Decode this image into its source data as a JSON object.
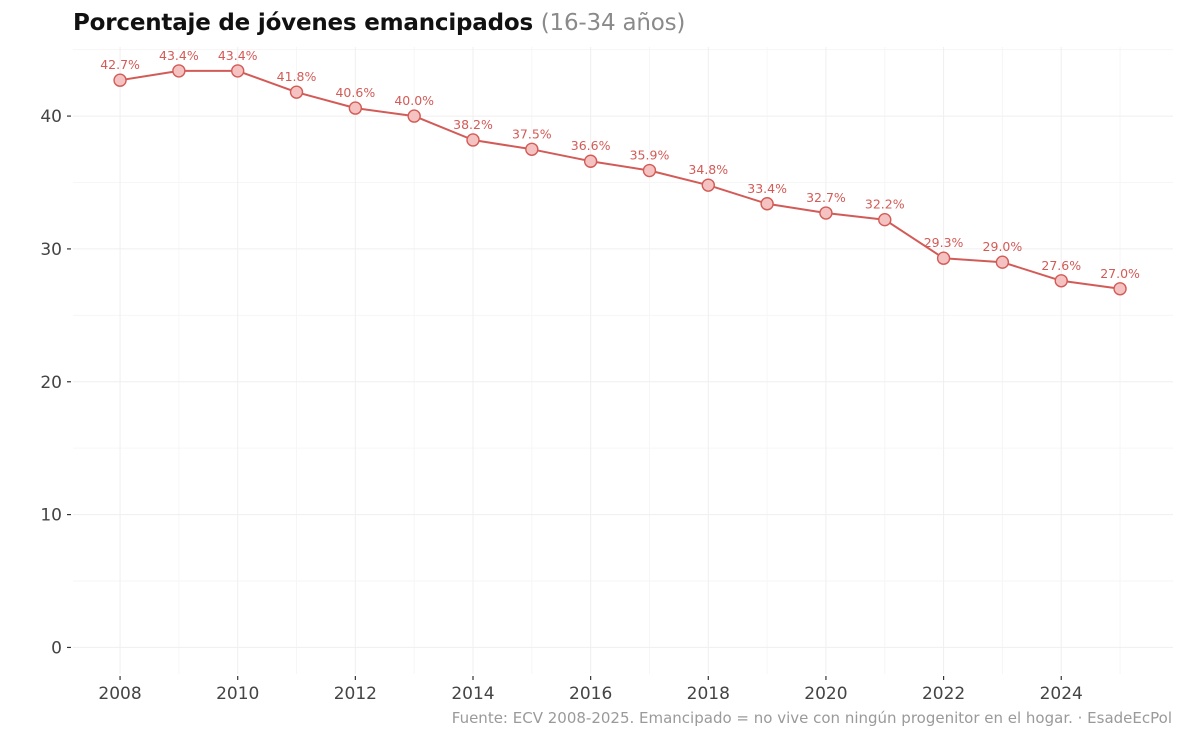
{
  "title": "Porcentaje de jóvenes emancipados",
  "subtitle": "(16-34 años)",
  "caption": "Fuente: ECV 2008-2025. Emancipado = no vive con ningún progenitor en el hogar. · EsadeEcPol",
  "colors": {
    "line": "#d35b57",
    "point_fill": "#f4c2c0",
    "label": "#d35b57",
    "grid": "#efefef",
    "axis_text": "#444444"
  },
  "chart_data": {
    "type": "line",
    "title": "Porcentaje de jóvenes emancipados",
    "subtitle": "(16-34 años)",
    "xlabel": "",
    "ylabel": "",
    "grid": true,
    "xlim": [
      2007.2,
      2025.9
    ],
    "ylim": [
      -2,
      45.2
    ],
    "x_ticks": [
      2008,
      2010,
      2012,
      2014,
      2016,
      2018,
      2020,
      2022,
      2024
    ],
    "y_ticks": [
      0,
      10,
      20,
      30,
      40
    ],
    "x": [
      2008,
      2009,
      2010,
      2011,
      2012,
      2013,
      2014,
      2015,
      2016,
      2017,
      2018,
      2019,
      2020,
      2021,
      2022,
      2023,
      2024,
      2025
    ],
    "values": [
      42.7,
      43.4,
      43.4,
      41.8,
      40.6,
      40.0,
      38.2,
      37.5,
      36.6,
      35.9,
      34.8,
      33.4,
      32.7,
      32.2,
      29.3,
      29.0,
      27.6,
      27.0
    ],
    "labels": [
      "42.7%",
      "43.4%",
      "43.4%",
      "41.8%",
      "40.6%",
      "40.0%",
      "38.2%",
      "37.5%",
      "36.6%",
      "35.9%",
      "34.8%",
      "33.4%",
      "32.7%",
      "32.2%",
      "29.3%",
      "29.0%",
      "27.6%",
      "27.0%"
    ]
  }
}
